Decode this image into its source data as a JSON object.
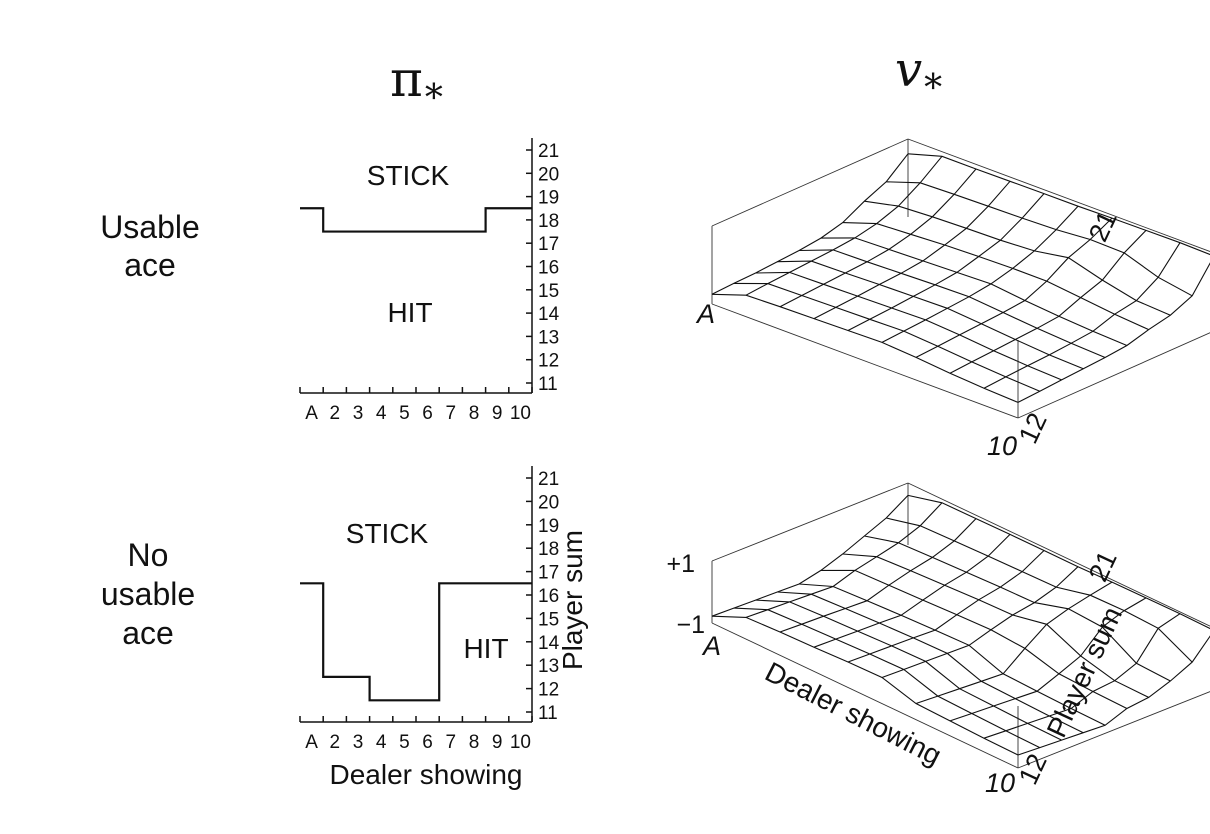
{
  "header": {
    "pi_symbol": "π",
    "pi_subscript": "*",
    "v_symbol": "v",
    "v_subscript": "*"
  },
  "row_labels": {
    "usable": [
      "Usable",
      "ace"
    ],
    "no_usable": [
      "No",
      "usable",
      "ace"
    ]
  },
  "chart_data": [
    {
      "id": "policy-usable",
      "type": "line",
      "title": "",
      "x_categories": [
        "A",
        "2",
        "3",
        "4",
        "5",
        "6",
        "7",
        "8",
        "9",
        "10"
      ],
      "y_ticks": [
        "11",
        "12",
        "13",
        "14",
        "15",
        "16",
        "17",
        "18",
        "19",
        "20",
        "21"
      ],
      "xlabel": "",
      "ylabel": "",
      "ylim": [
        11,
        21
      ],
      "region_labels": {
        "upper": "STICK",
        "lower": "HIT"
      },
      "stick_threshold": [
        19,
        18,
        18,
        18,
        18,
        18,
        18,
        18,
        19,
        19
      ]
    },
    {
      "id": "policy-no-usable",
      "type": "line",
      "title": "",
      "x_categories": [
        "A",
        "2",
        "3",
        "4",
        "5",
        "6",
        "7",
        "8",
        "9",
        "10"
      ],
      "y_ticks": [
        "11",
        "12",
        "13",
        "14",
        "15",
        "16",
        "17",
        "18",
        "19",
        "20",
        "21"
      ],
      "xlabel": "Dealer showing",
      "ylabel": "Player sum",
      "ylim": [
        11,
        21
      ],
      "region_labels": {
        "upper": "STICK",
        "lower": "HIT"
      },
      "stick_threshold": [
        17,
        13,
        13,
        12,
        12,
        12,
        17,
        17,
        17,
        17
      ]
    },
    {
      "id": "value-usable",
      "type": "surface",
      "title": "",
      "x_labels": {
        "first": "A",
        "last": "10"
      },
      "y_labels": {
        "first": "12",
        "last": "21"
      },
      "z_labels": {},
      "xlabel": "",
      "ylabel": "",
      "zlim": [
        -1,
        1
      ],
      "surface": [
        [
          -0.75,
          -0.45,
          -0.42,
          -0.4,
          -0.38,
          -0.36,
          -0.42,
          -0.5,
          -0.56,
          -0.6
        ],
        [
          -0.72,
          -0.4,
          -0.38,
          -0.36,
          -0.34,
          -0.32,
          -0.38,
          -0.46,
          -0.52,
          -0.56
        ],
        [
          -0.7,
          -0.36,
          -0.34,
          -0.32,
          -0.3,
          -0.28,
          -0.34,
          -0.42,
          -0.48,
          -0.52
        ],
        [
          -0.66,
          -0.32,
          -0.3,
          -0.27,
          -0.25,
          -0.23,
          -0.3,
          -0.38,
          -0.45,
          -0.48
        ],
        [
          -0.62,
          -0.28,
          -0.26,
          -0.23,
          -0.2,
          -0.18,
          -0.26,
          -0.34,
          -0.4,
          -0.44
        ],
        [
          -0.55,
          -0.22,
          -0.19,
          -0.16,
          -0.13,
          -0.1,
          -0.2,
          -0.28,
          -0.34,
          -0.38
        ],
        [
          -0.4,
          -0.1,
          -0.05,
          0.0,
          0.03,
          0.05,
          0.05,
          -0.05,
          -0.15,
          -0.22
        ],
        [
          -0.1,
          0.1,
          0.15,
          0.18,
          0.2,
          0.25,
          0.4,
          0.15,
          -0.05,
          -0.1
        ],
        [
          0.15,
          0.45,
          0.48,
          0.5,
          0.52,
          0.55,
          0.62,
          0.6,
          0.3,
          0.15
        ],
        [
          0.62,
          0.88,
          0.88,
          0.89,
          0.9,
          0.9,
          0.92,
          0.93,
          0.94,
          0.92
        ]
      ]
    },
    {
      "id": "value-no-usable",
      "type": "surface",
      "title": "",
      "x_labels": {
        "first": "A",
        "last": "10"
      },
      "y_labels": {
        "first": "12",
        "last": "21"
      },
      "z_labels": {
        "top": "+1",
        "bottom": "−1"
      },
      "xlabel": "Dealer showing",
      "ylabel": "Player sum",
      "zlim": [
        -1,
        1
      ],
      "surface": [
        [
          -0.78,
          -0.3,
          -0.25,
          -0.22,
          -0.18,
          -0.16,
          -0.48,
          -0.52,
          -0.56,
          -0.58
        ],
        [
          -0.8,
          -0.33,
          -0.28,
          -0.24,
          -0.2,
          -0.18,
          -0.52,
          -0.56,
          -0.6,
          -0.62
        ],
        [
          -0.82,
          -0.36,
          -0.3,
          -0.26,
          -0.22,
          -0.2,
          -0.56,
          -0.6,
          -0.64,
          -0.66
        ],
        [
          -0.84,
          -0.39,
          -0.33,
          -0.28,
          -0.24,
          -0.22,
          -0.6,
          -0.64,
          -0.68,
          -0.7
        ],
        [
          -0.86,
          -0.42,
          -0.36,
          -0.31,
          -0.27,
          -0.24,
          -0.64,
          -0.68,
          -0.72,
          -0.74
        ],
        [
          -0.7,
          -0.18,
          -0.14,
          -0.1,
          -0.05,
          -0.02,
          -0.1,
          -0.4,
          -0.45,
          -0.48
        ],
        [
          -0.45,
          -0.02,
          0.05,
          0.1,
          0.15,
          0.18,
          0.4,
          -0.1,
          -0.38,
          -0.4
        ],
        [
          -0.15,
          0.15,
          0.2,
          0.24,
          0.28,
          0.3,
          0.62,
          0.55,
          -0.1,
          -0.15
        ],
        [
          0.15,
          0.42,
          0.45,
          0.48,
          0.5,
          0.52,
          0.78,
          0.8,
          0.75,
          0.18
        ],
        [
          0.6,
          0.88,
          0.89,
          0.9,
          0.9,
          0.9,
          0.92,
          0.93,
          0.94,
          0.92
        ]
      ]
    }
  ]
}
